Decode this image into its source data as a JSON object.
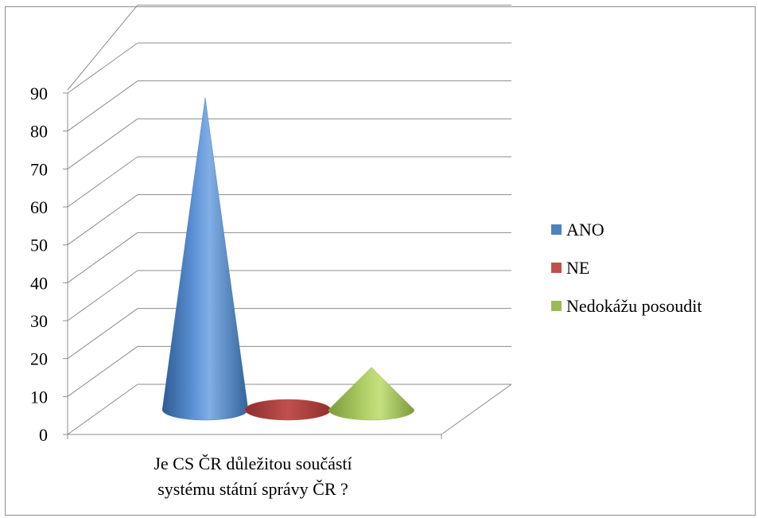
{
  "chart_data": {
    "type": "bar",
    "bar_shape": "cone-3d",
    "title": "",
    "xlabel": "",
    "ylabel": "",
    "categories": [
      "Je CS ČR důležitou součástí systému státní správy ČR ?"
    ],
    "category_lines": [
      "Je CS ČR důležitou součástí",
      "systému státní správy ČR ?"
    ],
    "series": [
      {
        "name": "ANO",
        "values": [
          88
        ],
        "color": "#4f81bd"
      },
      {
        "name": "NE",
        "values": [
          0
        ],
        "color": "#c0504d"
      },
      {
        "name": "Nedokážu posoudit",
        "values": [
          12
        ],
        "color": "#9bbb59"
      }
    ],
    "ylim": [
      0,
      90
    ],
    "yticks": [
      "0",
      "10",
      "20",
      "30",
      "40",
      "50",
      "60",
      "70",
      "80",
      "90"
    ],
    "grid": true,
    "legend": "right"
  }
}
